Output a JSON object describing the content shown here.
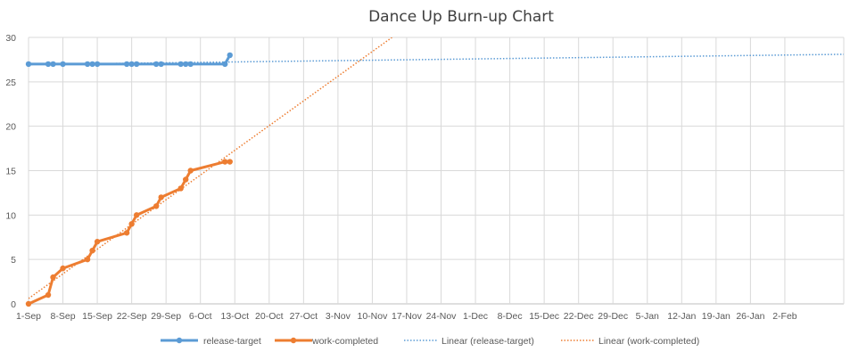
{
  "chart_data": {
    "type": "line",
    "title": "Dance Up Burn-up Chart",
    "xlabel": "",
    "ylabel": "",
    "ylim": [
      0,
      30
    ],
    "y_ticks": [
      0,
      5,
      10,
      15,
      20,
      25,
      30
    ],
    "xlim": [
      "2017-09-01",
      "2018-02-14"
    ],
    "x_tick_labels": [
      "1-Sep",
      "8-Sep",
      "15-Sep",
      "22-Sep",
      "29-Sep",
      "6-Oct",
      "13-Oct",
      "20-Oct",
      "27-Oct",
      "3-Nov",
      "10-Nov",
      "17-Nov",
      "24-Nov",
      "1-Dec",
      "8-Dec",
      "15-Dec",
      "22-Dec",
      "29-Dec",
      "5-Jan",
      "12-Jan",
      "19-Jan",
      "26-Jan",
      "2-Feb"
    ],
    "grid": true,
    "legend_position": "bottom",
    "series": [
      {
        "name": "release-target",
        "style": "line-markers",
        "color": "#5B9BD5",
        "points": [
          {
            "x": "2017-09-01",
            "y": 27
          },
          {
            "x": "2017-09-05",
            "y": 27
          },
          {
            "x": "2017-09-06",
            "y": 27
          },
          {
            "x": "2017-09-08",
            "y": 27
          },
          {
            "x": "2017-09-13",
            "y": 27
          },
          {
            "x": "2017-09-14",
            "y": 27
          },
          {
            "x": "2017-09-15",
            "y": 27
          },
          {
            "x": "2017-09-21",
            "y": 27
          },
          {
            "x": "2017-09-22",
            "y": 27
          },
          {
            "x": "2017-09-23",
            "y": 27
          },
          {
            "x": "2017-09-27",
            "y": 27
          },
          {
            "x": "2017-09-28",
            "y": 27
          },
          {
            "x": "2017-10-02",
            "y": 27
          },
          {
            "x": "2017-10-03",
            "y": 27
          },
          {
            "x": "2017-10-04",
            "y": 27
          },
          {
            "x": "2017-10-11",
            "y": 27
          },
          {
            "x": "2017-10-12",
            "y": 28
          }
        ]
      },
      {
        "name": "work-completed",
        "style": "line-markers",
        "color": "#ED7D31",
        "points": [
          {
            "x": "2017-09-01",
            "y": 0
          },
          {
            "x": "2017-09-05",
            "y": 1
          },
          {
            "x": "2017-09-06",
            "y": 3
          },
          {
            "x": "2017-09-08",
            "y": 4
          },
          {
            "x": "2017-09-13",
            "y": 5
          },
          {
            "x": "2017-09-14",
            "y": 6
          },
          {
            "x": "2017-09-15",
            "y": 7
          },
          {
            "x": "2017-09-21",
            "y": 8
          },
          {
            "x": "2017-09-22",
            "y": 9
          },
          {
            "x": "2017-09-23",
            "y": 10
          },
          {
            "x": "2017-09-27",
            "y": 11
          },
          {
            "x": "2017-09-28",
            "y": 12
          },
          {
            "x": "2017-10-02",
            "y": 13
          },
          {
            "x": "2017-10-03",
            "y": 14
          },
          {
            "x": "2017-10-04",
            "y": 15
          },
          {
            "x": "2017-10-11",
            "y": 16
          },
          {
            "x": "2017-10-12",
            "y": 16
          }
        ]
      },
      {
        "name": "Linear (release-target)",
        "style": "dotted",
        "color": "#5B9BD5",
        "points": [
          {
            "x": "2017-09-01",
            "y": 26.95
          },
          {
            "x": "2018-02-14",
            "y": 28.1
          }
        ]
      },
      {
        "name": "Linear (work-completed)",
        "style": "dotted",
        "color": "#ED7D31",
        "points": [
          {
            "x": "2017-09-01",
            "y": 0.6
          },
          {
            "x": "2017-11-14",
            "y": 30
          }
        ]
      }
    ]
  }
}
